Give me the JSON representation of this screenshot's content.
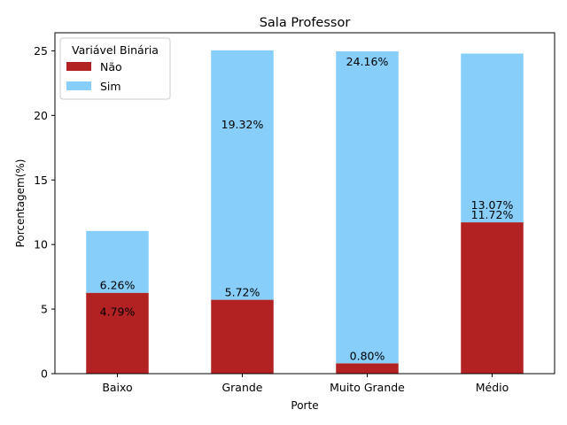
{
  "chart_data": {
    "type": "bar",
    "stacked": true,
    "title": "Sala Professor",
    "xlabel": "Porte",
    "ylabel": "Porcentagem(%)",
    "ylim": [
      0,
      26.4
    ],
    "yticks": [
      0,
      5,
      10,
      15,
      20,
      25
    ],
    "categories": [
      "Baixo",
      "Grande",
      "Muito Grande",
      "Médio"
    ],
    "legend": {
      "title": "Variável Binária",
      "placement": "top-left"
    },
    "series": [
      {
        "name": "Não",
        "color": "#b22222",
        "values": [
          6.26,
          5.72,
          0.8,
          11.72
        ]
      },
      {
        "name": "Sim",
        "color": "#87cefa",
        "values": [
          4.79,
          19.32,
          24.16,
          13.07
        ]
      }
    ],
    "data_labels": [
      [
        "6.26%",
        "5.72%",
        "0.80%",
        "11.72%"
      ],
      [
        "4.79%",
        "19.32%",
        "24.16%",
        "13.07%"
      ]
    ]
  }
}
